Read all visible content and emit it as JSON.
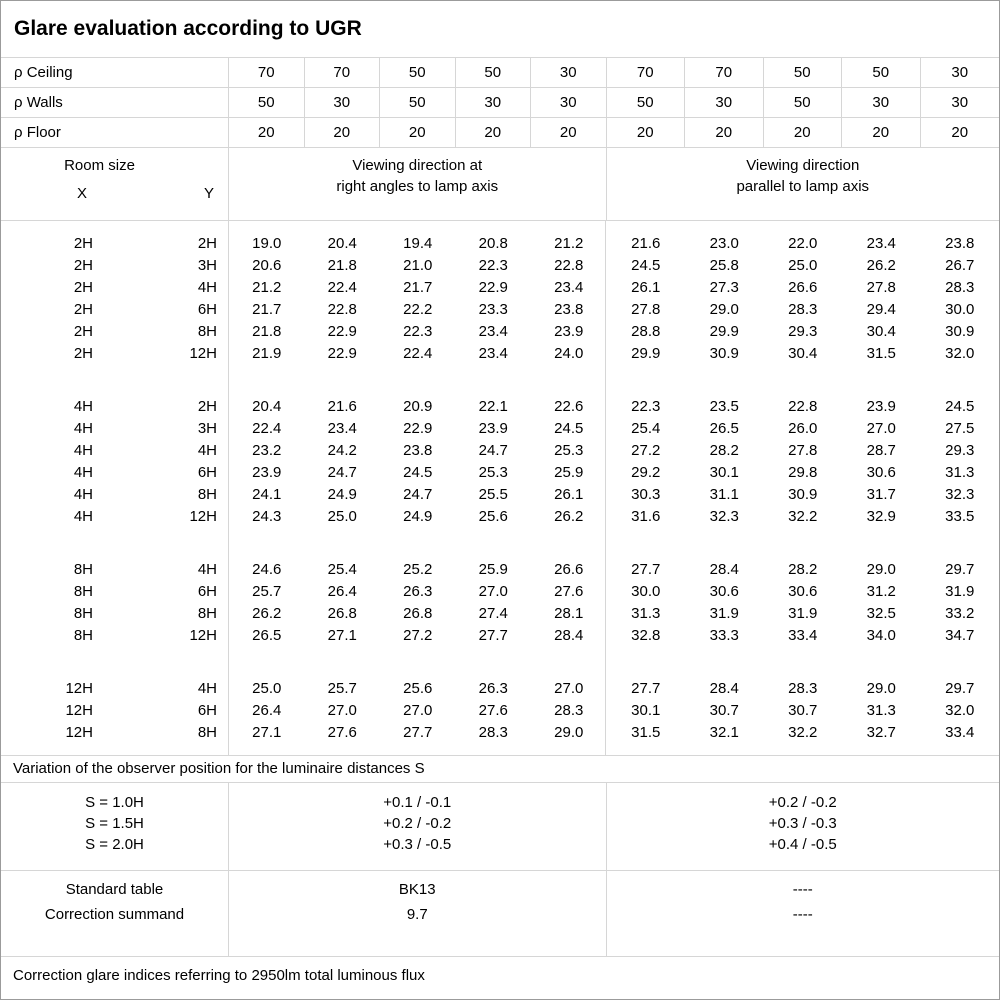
{
  "title": "Glare evaluation according to UGR",
  "reflectance": {
    "rows": [
      {
        "label": "ρ Ceiling",
        "values": [
          "70",
          "70",
          "50",
          "50",
          "30",
          "70",
          "70",
          "50",
          "50",
          "30"
        ]
      },
      {
        "label": "ρ Walls",
        "values": [
          "50",
          "30",
          "50",
          "30",
          "30",
          "50",
          "30",
          "50",
          "30",
          "30"
        ]
      },
      {
        "label": "ρ Floor",
        "values": [
          "20",
          "20",
          "20",
          "20",
          "20",
          "20",
          "20",
          "20",
          "20",
          "20"
        ]
      }
    ]
  },
  "room_size_header": {
    "title": "Room size",
    "x_label": "X",
    "y_label": "Y"
  },
  "group_headers": {
    "right_angles": "Viewing direction at\nright angles to lamp axis",
    "parallel": "Viewing direction\nparallel to lamp axis"
  },
  "ugr_blocks": [
    {
      "rows": [
        {
          "x": "2H",
          "y": "2H",
          "values": [
            "19.0",
            "20.4",
            "19.4",
            "20.8",
            "21.2",
            "21.6",
            "23.0",
            "22.0",
            "23.4",
            "23.8"
          ]
        },
        {
          "x": "2H",
          "y": "3H",
          "values": [
            "20.6",
            "21.8",
            "21.0",
            "22.3",
            "22.8",
            "24.5",
            "25.8",
            "25.0",
            "26.2",
            "26.7"
          ]
        },
        {
          "x": "2H",
          "y": "4H",
          "values": [
            "21.2",
            "22.4",
            "21.7",
            "22.9",
            "23.4",
            "26.1",
            "27.3",
            "26.6",
            "27.8",
            "28.3"
          ]
        },
        {
          "x": "2H",
          "y": "6H",
          "values": [
            "21.7",
            "22.8",
            "22.2",
            "23.3",
            "23.8",
            "27.8",
            "29.0",
            "28.3",
            "29.4",
            "30.0"
          ]
        },
        {
          "x": "2H",
          "y": "8H",
          "values": [
            "21.8",
            "22.9",
            "22.3",
            "23.4",
            "23.9",
            "28.8",
            "29.9",
            "29.3",
            "30.4",
            "30.9"
          ]
        },
        {
          "x": "2H",
          "y": "12H",
          "values": [
            "21.9",
            "22.9",
            "22.4",
            "23.4",
            "24.0",
            "29.9",
            "30.9",
            "30.4",
            "31.5",
            "32.0"
          ]
        }
      ]
    },
    {
      "rows": [
        {
          "x": "4H",
          "y": "2H",
          "values": [
            "20.4",
            "21.6",
            "20.9",
            "22.1",
            "22.6",
            "22.3",
            "23.5",
            "22.8",
            "23.9",
            "24.5"
          ]
        },
        {
          "x": "4H",
          "y": "3H",
          "values": [
            "22.4",
            "23.4",
            "22.9",
            "23.9",
            "24.5",
            "25.4",
            "26.5",
            "26.0",
            "27.0",
            "27.5"
          ]
        },
        {
          "x": "4H",
          "y": "4H",
          "values": [
            "23.2",
            "24.2",
            "23.8",
            "24.7",
            "25.3",
            "27.2",
            "28.2",
            "27.8",
            "28.7",
            "29.3"
          ]
        },
        {
          "x": "4H",
          "y": "6H",
          "values": [
            "23.9",
            "24.7",
            "24.5",
            "25.3",
            "25.9",
            "29.2",
            "30.1",
            "29.8",
            "30.6",
            "31.3"
          ]
        },
        {
          "x": "4H",
          "y": "8H",
          "values": [
            "24.1",
            "24.9",
            "24.7",
            "25.5",
            "26.1",
            "30.3",
            "31.1",
            "30.9",
            "31.7",
            "32.3"
          ]
        },
        {
          "x": "4H",
          "y": "12H",
          "values": [
            "24.3",
            "25.0",
            "24.9",
            "25.6",
            "26.2",
            "31.6",
            "32.3",
            "32.2",
            "32.9",
            "33.5"
          ]
        }
      ]
    },
    {
      "rows": [
        {
          "x": "8H",
          "y": "4H",
          "values": [
            "24.6",
            "25.4",
            "25.2",
            "25.9",
            "26.6",
            "27.7",
            "28.4",
            "28.2",
            "29.0",
            "29.7"
          ]
        },
        {
          "x": "8H",
          "y": "6H",
          "values": [
            "25.7",
            "26.4",
            "26.3",
            "27.0",
            "27.6",
            "30.0",
            "30.6",
            "30.6",
            "31.2",
            "31.9"
          ]
        },
        {
          "x": "8H",
          "y": "8H",
          "values": [
            "26.2",
            "26.8",
            "26.8",
            "27.4",
            "28.1",
            "31.3",
            "31.9",
            "31.9",
            "32.5",
            "33.2"
          ]
        },
        {
          "x": "8H",
          "y": "12H",
          "values": [
            "26.5",
            "27.1",
            "27.2",
            "27.7",
            "28.4",
            "32.8",
            "33.3",
            "33.4",
            "34.0",
            "34.7"
          ]
        }
      ]
    },
    {
      "rows": [
        {
          "x": "12H",
          "y": "4H",
          "values": [
            "25.0",
            "25.7",
            "25.6",
            "26.3",
            "27.0",
            "27.7",
            "28.4",
            "28.3",
            "29.0",
            "29.7"
          ]
        },
        {
          "x": "12H",
          "y": "6H",
          "values": [
            "26.4",
            "27.0",
            "27.0",
            "27.6",
            "28.3",
            "30.1",
            "30.7",
            "30.7",
            "31.3",
            "32.0"
          ]
        },
        {
          "x": "12H",
          "y": "8H",
          "values": [
            "27.1",
            "27.6",
            "27.7",
            "28.3",
            "29.0",
            "31.5",
            "32.1",
            "32.2",
            "32.7",
            "33.4"
          ]
        }
      ]
    }
  ],
  "footer": {
    "variation_note": "Variation of the observer position for the luminaire distances S",
    "s_rows": [
      {
        "label": "S = 1.0H",
        "right_angles": "+0.1 / -0.1",
        "parallel": "+0.2 / -0.2"
      },
      {
        "label": "S = 1.5H",
        "right_angles": "+0.2 / -0.2",
        "parallel": "+0.3 / -0.3"
      },
      {
        "label": "S = 2.0H",
        "right_angles": "+0.3 / -0.5",
        "parallel": "+0.4 / -0.5"
      }
    ],
    "standard_rows": [
      {
        "label": "Standard table",
        "right_angles": "BK13",
        "parallel": "----"
      },
      {
        "label": "Correction summand",
        "right_angles": "9.7",
        "parallel": "----"
      }
    ],
    "bottom_note": "Correction glare indices referring to 2950lm total luminous flux"
  },
  "colors": {
    "grid_line": "#d6d6d6",
    "outer_border": "#9b9b9b",
    "text": "#000000",
    "background": "#ffffff"
  }
}
